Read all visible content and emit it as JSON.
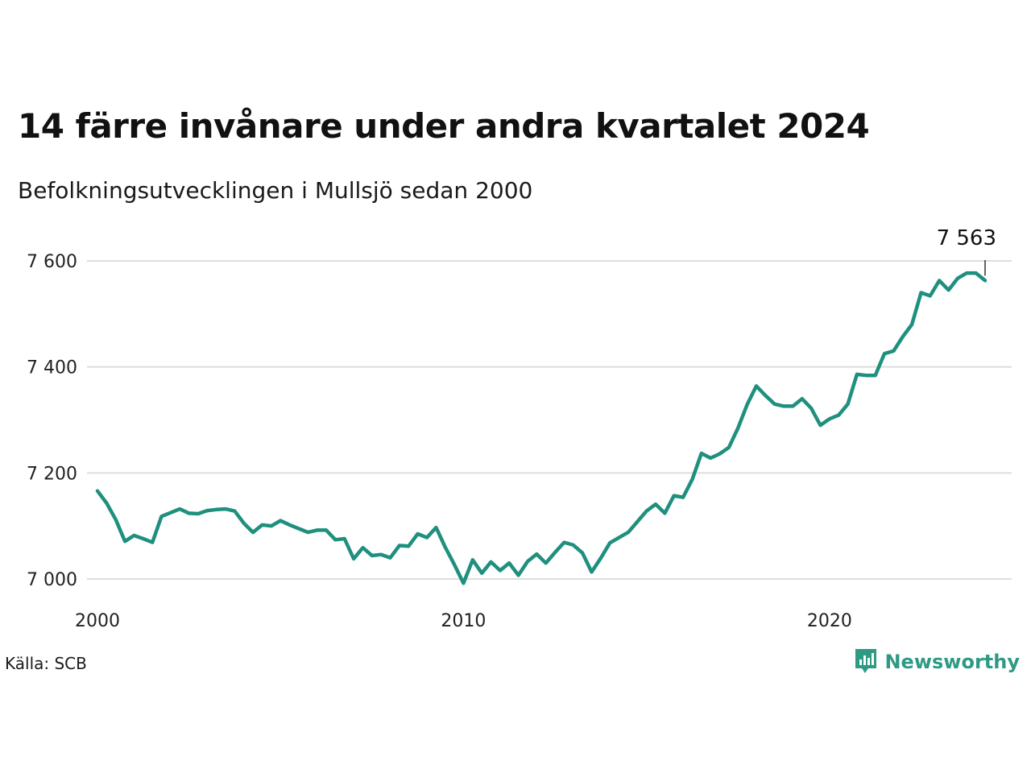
{
  "header": {
    "title": "14 färre invånare under andra kvartalet 2024",
    "subtitle": "Befolkningsutvecklingen i Mullsjö sedan 2000"
  },
  "footer": {
    "source": "Källa: SCB",
    "brand": "Newsworthy"
  },
  "colors": {
    "line": "#1f8f7e",
    "grid": "#dedede",
    "brand": "#2e9a84"
  },
  "chart_data": {
    "type": "line",
    "title": "14 färre invånare under andra kvartalet 2024",
    "subtitle": "Befolkningsutvecklingen i Mullsjö sedan 2000",
    "xlim": [
      2000,
      2025.25
    ],
    "ylim": [
      6980,
      7620
    ],
    "x_ticks": [
      2000,
      2010,
      2020
    ],
    "x_tick_labels": [
      "2000",
      "2010",
      "2020"
    ],
    "y_ticks": [
      7000,
      7200,
      7400,
      7600
    ],
    "y_tick_labels": [
      "7 000",
      "7 200",
      "7 400",
      "7 600"
    ],
    "grid": "horizontal",
    "end_label": "7 563",
    "series": [
      {
        "x": [
          2000.0,
          2000.25,
          2000.5,
          2000.75,
          2001.0,
          2001.25,
          2001.5,
          2001.75,
          2002.0,
          2002.25,
          2002.5,
          2002.75,
          2003.0,
          2003.25,
          2003.5,
          2003.75,
          2004.0,
          2004.25,
          2004.5,
          2004.75,
          2005.0,
          2005.25,
          2005.5,
          2005.75,
          2006.0,
          2006.25,
          2006.5,
          2006.75,
          2007.0,
          2007.25,
          2007.5,
          2007.75,
          2008.0,
          2008.25,
          2008.5,
          2008.75,
          2009.0,
          2009.25,
          2009.5,
          2009.75,
          2010.0,
          2010.25,
          2010.5,
          2010.75,
          2011.0,
          2011.25,
          2011.5,
          2011.75,
          2012.0,
          2012.25,
          2012.5,
          2012.75,
          2013.0,
          2013.25,
          2013.5,
          2013.75,
          2014.0,
          2014.25,
          2014.5,
          2014.75,
          2015.0,
          2015.25,
          2015.5,
          2015.75,
          2016.0,
          2016.25,
          2016.5,
          2016.75,
          2017.0,
          2017.25,
          2017.5,
          2017.75,
          2018.0,
          2018.25,
          2018.5,
          2018.75,
          2019.0,
          2019.25,
          2019.5,
          2019.75,
          2020.0,
          2020.25,
          2020.5,
          2020.75,
          2021.0,
          2021.25,
          2021.5,
          2021.75,
          2022.0,
          2022.25,
          2022.5,
          2022.75,
          2023.0,
          2023.25,
          2023.5,
          2023.75,
          2024.0,
          2024.25
        ],
        "values": [
          7166,
          7143,
          7112,
          7071,
          7082,
          7076,
          7069,
          7118,
          7125,
          7132,
          7124,
          7123,
          7129,
          7131,
          7132,
          7128,
          7105,
          7088,
          7102,
          7100,
          7110,
          7102,
          7095,
          7088,
          7092,
          7092,
          7074,
          7076,
          7038,
          7059,
          7044,
          7046,
          7040,
          7063,
          7062,
          7085,
          7078,
          7097,
          7060,
          7027,
          6992,
          7036,
          7011,
          7032,
          7016,
          7030,
          7007,
          7033,
          7047,
          7030,
          7050,
          7069,
          7064,
          7049,
          7013,
          7039,
          7068,
          7078,
          7088,
          7108,
          7128,
          7141,
          7124,
          7157,
          7154,
          7188,
          7237,
          7228,
          7236,
          7248,
          7285,
          7329,
          7364,
          7346,
          7330,
          7326,
          7326,
          7340,
          7322,
          7290,
          7302,
          7309,
          7330,
          7386,
          7384,
          7384,
          7425,
          7430,
          7457,
          7480,
          7540,
          7534,
          7563,
          7545,
          7567,
          7577,
          7577,
          7563
        ]
      }
    ]
  }
}
